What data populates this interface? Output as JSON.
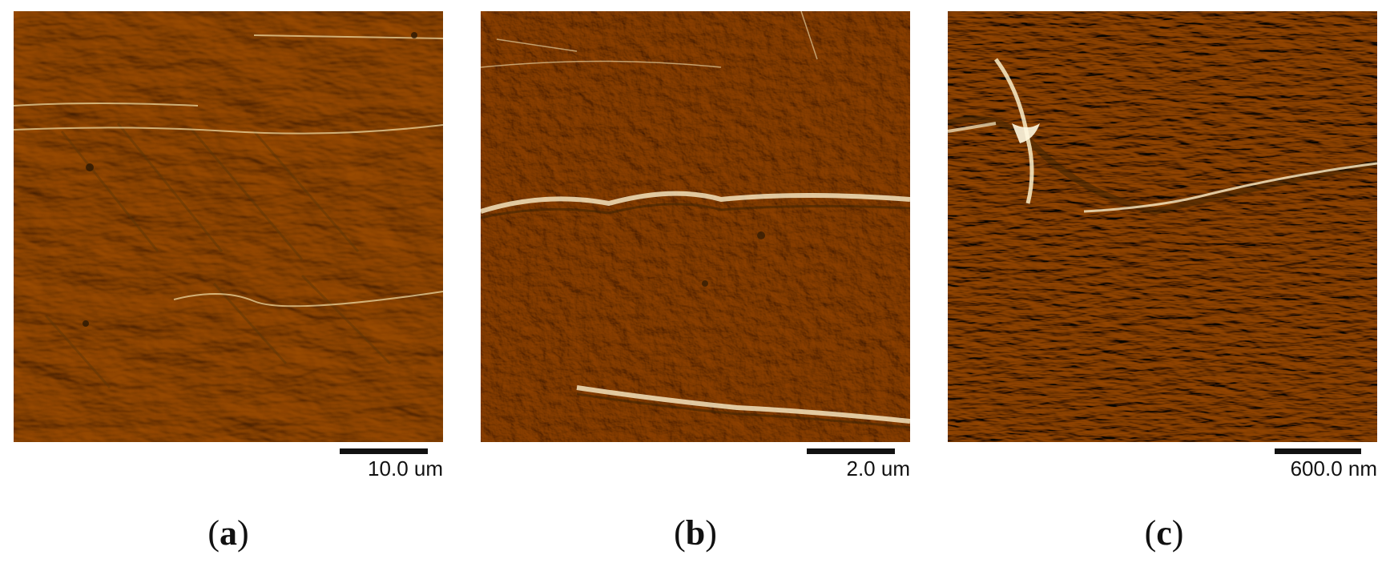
{
  "panels": [
    {
      "id": "a",
      "caption_open": "(",
      "caption_letter": "a",
      "caption_close": ")",
      "scale_label": "10.0 um"
    },
    {
      "id": "b",
      "caption_open": "(",
      "caption_letter": "b",
      "caption_close": ")",
      "scale_label": "2.0 um"
    },
    {
      "id": "c",
      "caption_open": "(",
      "caption_letter": "c",
      "caption_close": ")",
      "scale_label": "600.0 nm"
    }
  ],
  "colors": {
    "afm_base": "#9a6418",
    "afm_dark": "#5a3608",
    "afm_light": "#f6e6b8",
    "scale_bar": "#111111"
  }
}
